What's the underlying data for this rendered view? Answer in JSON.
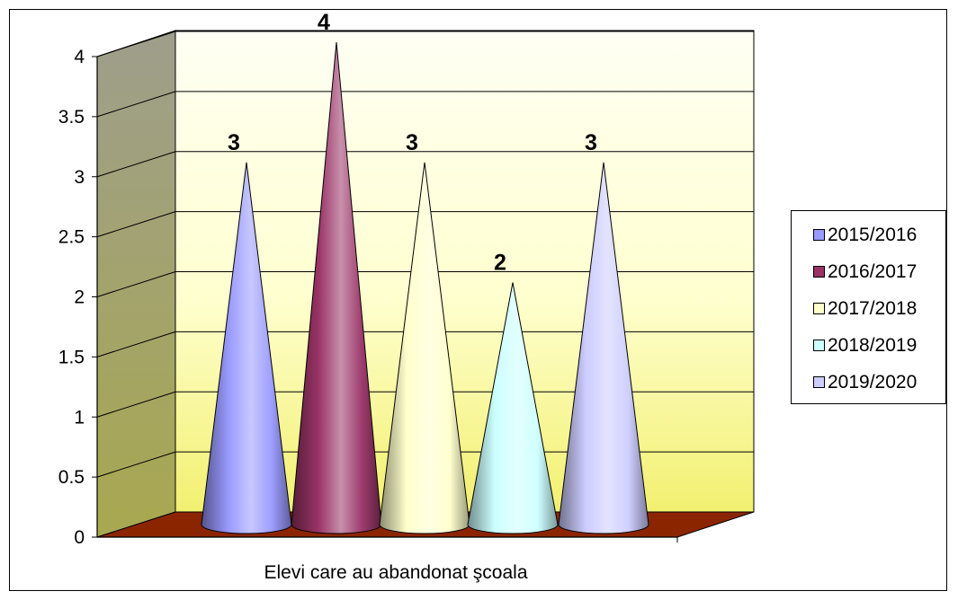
{
  "chart_data": {
    "type": "bar",
    "bar_shape": "3d-cone",
    "categories": [
      "Elevi care au abandonat şcoala"
    ],
    "series": [
      {
        "name": "2015/2016",
        "values": [
          3
        ],
        "color": "#9999FF"
      },
      {
        "name": "2016/2017",
        "values": [
          4
        ],
        "color": "#993366"
      },
      {
        "name": "2017/2018",
        "values": [
          3
        ],
        "color": "#FFFFCC"
      },
      {
        "name": "2018/2019",
        "values": [
          2
        ],
        "color": "#CCFFFF"
      },
      {
        "name": "2019/2020",
        "values": [
          3
        ],
        "color": "#CCCCFF"
      }
    ],
    "data_labels": [
      "3",
      "4",
      "3",
      "2",
      "3"
    ],
    "xlabel": "Elevi care au abandonat şcoala",
    "ylabel": "",
    "ylim": [
      0,
      4
    ],
    "yticks": [
      "0",
      "0.5",
      "1",
      "1.5",
      "2",
      "2.5",
      "3",
      "3.5",
      "4"
    ],
    "grid": true,
    "legend_position": "right",
    "colors": {
      "back_wall": "#FFFFC0",
      "side_wall": "#A8A880",
      "floor": "#8B2500"
    }
  }
}
